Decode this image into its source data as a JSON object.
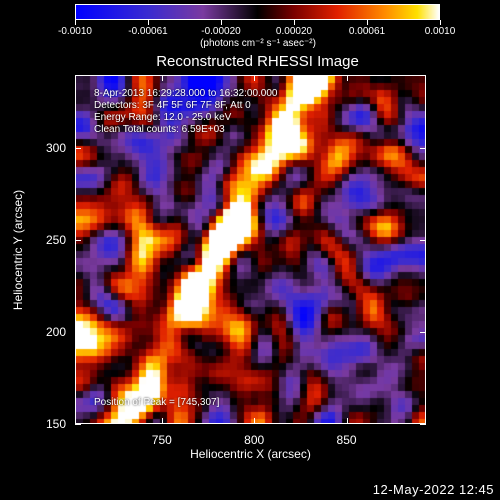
{
  "colorbar": {
    "ticks": [
      "-0.0010",
      "-0.00061",
      "-0.00020",
      "0.00020",
      "0.00061",
      "0.0010"
    ],
    "unit_label": "(photons cm⁻² s⁻¹ asec⁻²)"
  },
  "title": "Reconstructed RHESSI Image",
  "info": {
    "time": "8-Apr-2013 16:29:28.000 to 16:32:00.000",
    "detectors": "Detectors: 3F 4F 5F 6F 7F 8F, Att 0",
    "energy": "Energy Range: 12.0 - 25.0 keV",
    "clean": "Clean      Total counts: 6.59E+03",
    "peak": "Position of Peak = [745,307]"
  },
  "axes": {
    "xlabel": "Heliocentric X (arcsec)",
    "ylabel": "Heliocentric Y (arcsec)",
    "xticks": [
      "750",
      "800",
      "850"
    ],
    "yticks": [
      "150",
      "200",
      "250",
      "300"
    ],
    "x_range": [
      703,
      893
    ],
    "y_range": [
      150,
      340
    ]
  },
  "timestamp": "12-May-2022 12:45",
  "colors": {
    "background": "#000000",
    "text": "#ffffff"
  }
}
